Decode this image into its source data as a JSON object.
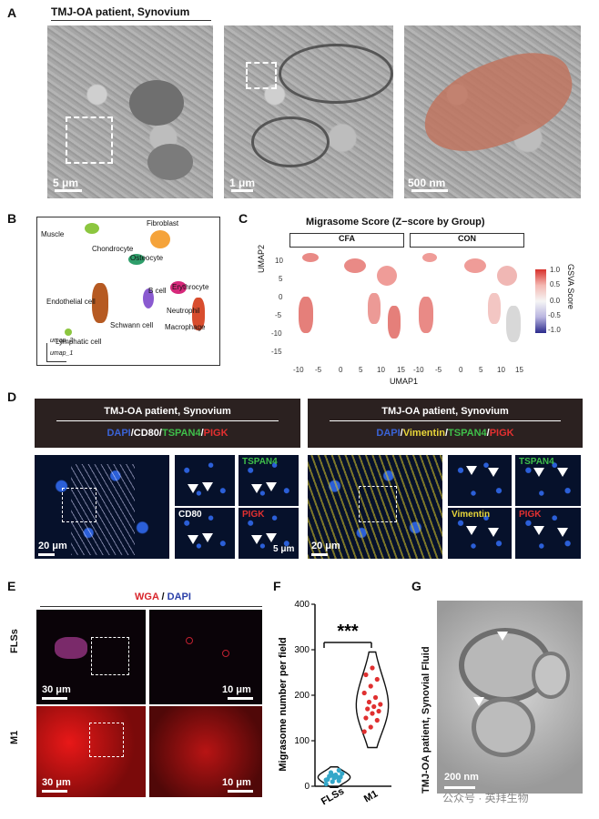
{
  "panelA": {
    "letter": "A",
    "title": "TMJ-OA patient, Synovium",
    "scalebars": [
      "5 μm",
      "1 μm",
      "500 nm"
    ]
  },
  "panelB": {
    "letter": "B",
    "clusters": [
      "Muscle",
      "Fibroblast",
      "Chondrocyte",
      "Osteocyte",
      "B cell",
      "Erythrocyte",
      "Endothelial cell",
      "Neutrophil",
      "Schwann cell",
      "Macrophage",
      "Lymphatic cell"
    ],
    "axis_y": "umap_2",
    "axis_x": "umap_1"
  },
  "panelC": {
    "letter": "C",
    "title": "Migrasome Score (Z−score by Group)",
    "facets": [
      "CFA",
      "CON"
    ],
    "ylabel": "UMAP2",
    "xlabel": "UMAP1",
    "yticks": [
      "10",
      "5",
      "0",
      "-5",
      "-10",
      "-15"
    ],
    "xticks": [
      "-10",
      "-5",
      "0",
      "5",
      "10",
      "15"
    ],
    "legend_title": "GSVA Score",
    "legend_ticks": [
      "1.0",
      "0.5",
      "0.0",
      "-0.5",
      "-1.0"
    ]
  },
  "panelD": {
    "letter": "D",
    "left_title": "TMJ-OA patient, Synovium",
    "right_title": "TMJ-OA patient, Synovium",
    "left_stain": [
      {
        "text": "DAPI",
        "color": "#3a63d6"
      },
      {
        "text": "/",
        "color": "#ffffff"
      },
      {
        "text": "CD80",
        "color": "#ffffff"
      },
      {
        "text": "/",
        "color": "#ffffff"
      },
      {
        "text": "TSPAN4",
        "color": "#3fbf4a"
      },
      {
        "text": "/",
        "color": "#ffffff"
      },
      {
        "text": "PIGK",
        "color": "#e33030"
      }
    ],
    "right_stain": [
      {
        "text": "DAPI",
        "color": "#3a63d6"
      },
      {
        "text": "/",
        "color": "#ffffff"
      },
      {
        "text": "Vimentin",
        "color": "#e8d63a"
      },
      {
        "text": "/",
        "color": "#ffffff"
      },
      {
        "text": "TSPAN4",
        "color": "#3fbf4a"
      },
      {
        "text": "/",
        "color": "#ffffff"
      },
      {
        "text": "PIGK",
        "color": "#e33030"
      }
    ],
    "left_labels": {
      "tspan4": "TSPAN4",
      "cd80": "CD80",
      "pigk": "PIGK"
    },
    "right_labels": {
      "tspan4": "TSPAN4",
      "vimentin": "Vimentin",
      "pigk": "PIGK"
    },
    "scalebars": {
      "main": "20 μm",
      "inset": "5 μm"
    }
  },
  "panelE": {
    "letter": "E",
    "legend": [
      {
        "text": "WGA",
        "color": "#d8242a"
      },
      {
        "text": " / ",
        "color": "#333333"
      },
      {
        "text": "DAPI",
        "color": "#2a3fa8"
      }
    ],
    "rows": [
      "FLSs",
      "M1"
    ],
    "scalebars": [
      "30 μm",
      "10 μm"
    ]
  },
  "panelF": {
    "letter": "F",
    "significance": "***",
    "chart_data": {
      "type": "violin",
      "categories": [
        "FLSs",
        "M1"
      ],
      "ylabel": "Migrasome number per field",
      "ylim": [
        0,
        400
      ],
      "yticks": [
        0,
        100,
        200,
        300,
        400
      ],
      "series": [
        {
          "name": "FLSs",
          "color": "#34a7c9",
          "values": [
            5,
            10,
            12,
            15,
            18,
            20,
            22,
            25,
            28,
            30,
            20,
            14,
            24,
            35
          ]
        },
        {
          "name": "M1",
          "color": "#e03030",
          "values": [
            120,
            130,
            145,
            150,
            160,
            165,
            170,
            175,
            180,
            185,
            195,
            205,
            220,
            235,
            245,
            260
          ]
        }
      ]
    }
  },
  "panelG": {
    "letter": "G",
    "side_label": "TMJ-OA patient, Synovial Fluid",
    "scalebar": "200 nm"
  },
  "watermark": "公众号 · 英拜生物"
}
